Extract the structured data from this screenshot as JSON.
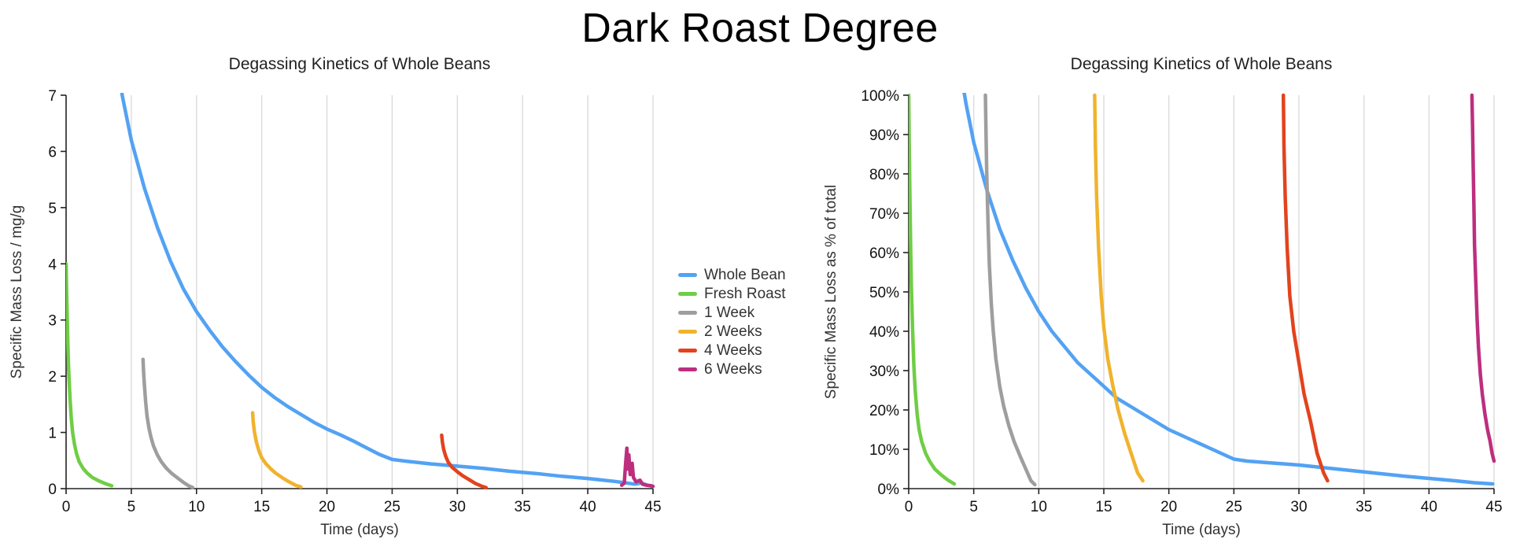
{
  "page_title": "Dark Roast Degree",
  "legend": {
    "entries": [
      {
        "label": "Whole Bean",
        "color": "#53A2F3"
      },
      {
        "label": "Fresh Roast",
        "color": "#6FCE44"
      },
      {
        "label": "1 Week",
        "color": "#9E9E9E"
      },
      {
        "label": "2 Weeks",
        "color": "#F0B32E"
      },
      {
        "label": "4 Weeks",
        "color": "#E2431E"
      },
      {
        "label": "6 Weeks",
        "color": "#BD2E7E"
      }
    ]
  },
  "chart_data": [
    {
      "type": "line",
      "title": "Degassing Kinetics of Whole Beans",
      "xlabel": "Time (days)",
      "ylabel": "Specific Mass Loss / mg/g",
      "xlim": [
        0,
        45
      ],
      "ylim": [
        0,
        7
      ],
      "xticks": [
        0,
        5,
        10,
        15,
        20,
        25,
        30,
        35,
        40,
        45
      ],
      "yticks": [
        0,
        1,
        2,
        3,
        4,
        5,
        6,
        7
      ],
      "ytick_suffix": "",
      "grid": "vertical-only",
      "series": [
        {
          "name": "Whole Bean",
          "color": "#53A2F3",
          "points": [
            [
              4.0,
              7.6
            ],
            [
              4.3,
              7.0
            ],
            [
              5,
              6.2
            ],
            [
              6,
              5.35
            ],
            [
              7,
              4.65
            ],
            [
              8,
              4.05
            ],
            [
              9,
              3.55
            ],
            [
              10,
              3.15
            ],
            [
              11,
              2.82
            ],
            [
              12,
              2.52
            ],
            [
              13,
              2.26
            ],
            [
              14,
              2.02
            ],
            [
              15,
              1.8
            ],
            [
              16,
              1.62
            ],
            [
              17,
              1.46
            ],
            [
              18,
              1.32
            ],
            [
              19,
              1.18
            ],
            [
              20,
              1.06
            ],
            [
              21,
              0.96
            ],
            [
              22,
              0.85
            ],
            [
              23,
              0.73
            ],
            [
              24,
              0.61
            ],
            [
              25,
              0.52
            ],
            [
              26,
              0.49
            ],
            [
              28,
              0.44
            ],
            [
              30,
              0.4
            ],
            [
              32,
              0.36
            ],
            [
              34,
              0.31
            ],
            [
              36,
              0.27
            ],
            [
              38,
              0.22
            ],
            [
              40,
              0.18
            ],
            [
              42,
              0.13
            ],
            [
              43,
              0.1
            ],
            [
              43.6,
              0.08
            ],
            [
              44.1,
              0.1
            ],
            [
              44.6,
              0.06
            ],
            [
              44.9,
              0.05
            ]
          ]
        },
        {
          "name": "Fresh Roast",
          "color": "#6FCE44",
          "points": [
            [
              0.0,
              4.0
            ],
            [
              0.05,
              3.4
            ],
            [
              0.1,
              2.9
            ],
            [
              0.15,
              2.45
            ],
            [
              0.2,
              2.1
            ],
            [
              0.3,
              1.6
            ],
            [
              0.4,
              1.25
            ],
            [
              0.5,
              1.0
            ],
            [
              0.65,
              0.78
            ],
            [
              0.8,
              0.62
            ],
            [
              1.0,
              0.48
            ],
            [
              1.3,
              0.36
            ],
            [
              1.6,
              0.28
            ],
            [
              2.0,
              0.2
            ],
            [
              2.5,
              0.14
            ],
            [
              3.0,
              0.09
            ],
            [
              3.5,
              0.05
            ]
          ]
        },
        {
          "name": "1 Week",
          "color": "#9E9E9E",
          "points": [
            [
              5.9,
              2.3
            ],
            [
              5.95,
              2.05
            ],
            [
              6.0,
              1.85
            ],
            [
              6.1,
              1.55
            ],
            [
              6.2,
              1.3
            ],
            [
              6.35,
              1.08
            ],
            [
              6.5,
              0.92
            ],
            [
              6.7,
              0.76
            ],
            [
              7.0,
              0.6
            ],
            [
              7.3,
              0.48
            ],
            [
              7.7,
              0.36
            ],
            [
              8.1,
              0.27
            ],
            [
              8.6,
              0.18
            ],
            [
              9.0,
              0.11
            ],
            [
              9.4,
              0.05
            ],
            [
              9.7,
              0.02
            ]
          ]
        },
        {
          "name": "2 Weeks",
          "color": "#F0B32E",
          "points": [
            [
              14.3,
              1.35
            ],
            [
              14.35,
              1.18
            ],
            [
              14.45,
              1.0
            ],
            [
              14.6,
              0.82
            ],
            [
              14.8,
              0.66
            ],
            [
              15.0,
              0.55
            ],
            [
              15.3,
              0.45
            ],
            [
              15.7,
              0.35
            ],
            [
              16.1,
              0.27
            ],
            [
              16.6,
              0.19
            ],
            [
              17.1,
              0.12
            ],
            [
              17.6,
              0.06
            ],
            [
              18.0,
              0.03
            ]
          ]
        },
        {
          "name": "4 Weeks",
          "color": "#E2431E",
          "points": [
            [
              28.8,
              0.95
            ],
            [
              28.85,
              0.83
            ],
            [
              28.95,
              0.7
            ],
            [
              29.1,
              0.58
            ],
            [
              29.3,
              0.47
            ],
            [
              29.6,
              0.38
            ],
            [
              30.0,
              0.3
            ],
            [
              30.4,
              0.23
            ],
            [
              30.9,
              0.16
            ],
            [
              31.4,
              0.09
            ],
            [
              31.9,
              0.04
            ],
            [
              32.2,
              0.02
            ]
          ]
        },
        {
          "name": "6 Weeks",
          "color": "#BD2E7E",
          "points": [
            [
              42.6,
              0.06
            ],
            [
              42.8,
              0.1
            ],
            [
              42.9,
              0.45
            ],
            [
              43.0,
              0.72
            ],
            [
              43.05,
              0.35
            ],
            [
              43.15,
              0.6
            ],
            [
              43.25,
              0.25
            ],
            [
              43.4,
              0.45
            ],
            [
              43.5,
              0.2
            ],
            [
              43.7,
              0.12
            ],
            [
              44.0,
              0.15
            ],
            [
              44.2,
              0.08
            ],
            [
              44.5,
              0.06
            ],
            [
              44.8,
              0.05
            ],
            [
              45.0,
              0.04
            ]
          ]
        }
      ]
    },
    {
      "type": "line",
      "title": "Degassing Kinetics of Whole Beans",
      "xlabel": "Time (days)",
      "ylabel": "Specific Mass Loss as % of total",
      "xlim": [
        0,
        45
      ],
      "ylim": [
        0,
        100
      ],
      "xticks": [
        0,
        5,
        10,
        15,
        20,
        25,
        30,
        35,
        40,
        45
      ],
      "yticks": [
        0,
        10,
        20,
        30,
        40,
        50,
        60,
        70,
        80,
        90,
        100
      ],
      "ytick_suffix": "%",
      "grid": "vertical-only",
      "series": [
        {
          "name": "Whole Bean",
          "color": "#53A2F3",
          "points": [
            [
              4.2,
              102
            ],
            [
              4.4,
              98
            ],
            [
              5,
              88
            ],
            [
              6,
              76
            ],
            [
              7,
              66
            ],
            [
              8,
              58
            ],
            [
              9,
              51
            ],
            [
              10,
              45
            ],
            [
              11,
              40
            ],
            [
              12,
              36
            ],
            [
              13,
              32
            ],
            [
              14,
              29
            ],
            [
              15,
              26
            ],
            [
              16,
              23
            ],
            [
              17,
              21
            ],
            [
              18,
              19
            ],
            [
              19,
              17
            ],
            [
              20,
              15
            ],
            [
              21,
              13.5
            ],
            [
              22,
              12
            ],
            [
              23,
              10.5
            ],
            [
              24,
              9
            ],
            [
              25,
              7.5
            ],
            [
              26,
              7
            ],
            [
              28,
              6.5
            ],
            [
              30,
              6
            ],
            [
              32,
              5.3
            ],
            [
              34,
              4.6
            ],
            [
              36,
              3.9
            ],
            [
              38,
              3.2
            ],
            [
              40,
              2.6
            ],
            [
              42,
              2
            ],
            [
              43.5,
              1.5
            ],
            [
              44.9,
              1.2
            ]
          ]
        },
        {
          "name": "Fresh Roast",
          "color": "#6FCE44",
          "points": [
            [
              0.0,
              100
            ],
            [
              0.05,
              85
            ],
            [
              0.1,
              72
            ],
            [
              0.15,
              61
            ],
            [
              0.2,
              52
            ],
            [
              0.3,
              40
            ],
            [
              0.4,
              31
            ],
            [
              0.5,
              25
            ],
            [
              0.65,
              19
            ],
            [
              0.8,
              15
            ],
            [
              1.0,
              12
            ],
            [
              1.3,
              9
            ],
            [
              1.6,
              7
            ],
            [
              2.0,
              5
            ],
            [
              2.5,
              3.5
            ],
            [
              3.0,
              2.2
            ],
            [
              3.5,
              1.2
            ]
          ]
        },
        {
          "name": "1 Week",
          "color": "#9E9E9E",
          "points": [
            [
              5.9,
              100
            ],
            [
              5.95,
              89
            ],
            [
              6.0,
              80
            ],
            [
              6.1,
              67
            ],
            [
              6.2,
              57
            ],
            [
              6.35,
              47
            ],
            [
              6.5,
              40
            ],
            [
              6.7,
              33
            ],
            [
              7.0,
              26
            ],
            [
              7.3,
              21
            ],
            [
              7.7,
              16
            ],
            [
              8.1,
              12
            ],
            [
              8.6,
              8
            ],
            [
              9.0,
              5
            ],
            [
              9.4,
              2
            ],
            [
              9.7,
              1
            ]
          ]
        },
        {
          "name": "2 Weeks",
          "color": "#F0B32E",
          "points": [
            [
              14.3,
              100
            ],
            [
              14.35,
              87
            ],
            [
              14.45,
              74
            ],
            [
              14.6,
              61
            ],
            [
              14.8,
              49
            ],
            [
              15.0,
              41
            ],
            [
              15.3,
              33
            ],
            [
              15.7,
              26
            ],
            [
              16.1,
              20
            ],
            [
              16.6,
              14
            ],
            [
              17.1,
              9
            ],
            [
              17.6,
              4
            ],
            [
              18.0,
              2
            ]
          ]
        },
        {
          "name": "4 Weeks",
          "color": "#E2431E",
          "points": [
            [
              28.8,
              100
            ],
            [
              28.85,
              87
            ],
            [
              28.95,
              74
            ],
            [
              29.1,
              61
            ],
            [
              29.3,
              49
            ],
            [
              29.6,
              40
            ],
            [
              30.0,
              32
            ],
            [
              30.4,
              24
            ],
            [
              30.9,
              17
            ],
            [
              31.4,
              9
            ],
            [
              31.9,
              4
            ],
            [
              32.2,
              2
            ]
          ]
        },
        {
          "name": "6 Weeks",
          "color": "#BD2E7E",
          "points": [
            [
              43.3,
              100
            ],
            [
              43.35,
              92
            ],
            [
              43.4,
              82
            ],
            [
              43.45,
              72
            ],
            [
              43.5,
              62
            ],
            [
              43.6,
              52
            ],
            [
              43.7,
              43
            ],
            [
              43.8,
              36
            ],
            [
              43.95,
              29
            ],
            [
              44.1,
              24
            ],
            [
              44.3,
              19
            ],
            [
              44.5,
              15
            ],
            [
              44.7,
              12
            ],
            [
              44.85,
              9
            ],
            [
              45.0,
              7
            ]
          ]
        }
      ]
    }
  ]
}
